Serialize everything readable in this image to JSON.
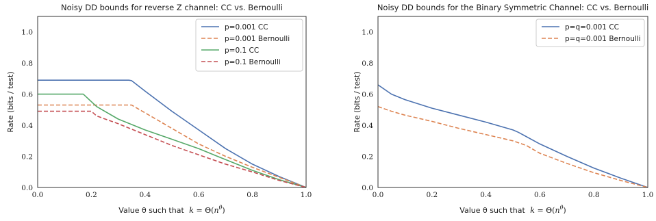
{
  "chart_data": [
    {
      "type": "line",
      "title": "Noisy DD bounds for reverse Z channel: CC vs. Bernoulli",
      "xlabel_text": "Value θ such that",
      "xlabel_math": "k = Θ(nθ)",
      "ylabel": "Rate (bits / test)",
      "xlim": [
        0.0,
        1.0
      ],
      "ylim": [
        0.0,
        1.1
      ],
      "xticks": [
        "0.0",
        "0.2",
        "0.4",
        "0.6",
        "0.8",
        "1.0"
      ],
      "yticks": [
        "0.0",
        "0.2",
        "0.4",
        "0.6",
        "0.8",
        "1.0"
      ],
      "grid": false,
      "legend_position": "top-right",
      "series": [
        {
          "name": "p=0.001 CC",
          "color": "#4c72b0",
          "dash": "solid",
          "points": [
            [
              0.0,
              0.69
            ],
            [
              0.34,
              0.69
            ],
            [
              0.35,
              0.687
            ],
            [
              0.4,
              0.62
            ],
            [
              0.5,
              0.49
            ],
            [
              0.6,
              0.37
            ],
            [
              0.7,
              0.25
            ],
            [
              0.8,
              0.15
            ],
            [
              0.9,
              0.07
            ],
            [
              1.0,
              0.0
            ]
          ]
        },
        {
          "name": "p=0.001 Bernoulli",
          "color": "#dd8452",
          "dash": "dashed",
          "points": [
            [
              0.0,
              0.53
            ],
            [
              0.35,
              0.53
            ],
            [
              0.4,
              0.48
            ],
            [
              0.5,
              0.38
            ],
            [
              0.6,
              0.28
            ],
            [
              0.7,
              0.2
            ],
            [
              0.8,
              0.13
            ],
            [
              0.9,
              0.065
            ],
            [
              1.0,
              0.0
            ]
          ]
        },
        {
          "name": "p=0.1 CC",
          "color": "#55a868",
          "dash": "solid",
          "points": [
            [
              0.0,
              0.6
            ],
            [
              0.17,
              0.6
            ],
            [
              0.22,
              0.52
            ],
            [
              0.3,
              0.44
            ],
            [
              0.4,
              0.37
            ],
            [
              0.5,
              0.31
            ],
            [
              0.6,
              0.25
            ],
            [
              0.67,
              0.2
            ],
            [
              0.8,
              0.11
            ],
            [
              0.9,
              0.05
            ],
            [
              1.0,
              0.0
            ]
          ]
        },
        {
          "name": "p=0.1 Bernoulli",
          "color": "#c44e52",
          "dash": "dashed",
          "points": [
            [
              0.0,
              0.49
            ],
            [
              0.2,
              0.49
            ],
            [
              0.22,
              0.46
            ],
            [
              0.3,
              0.41
            ],
            [
              0.4,
              0.34
            ],
            [
              0.5,
              0.27
            ],
            [
              0.6,
              0.21
            ],
            [
              0.7,
              0.15
            ],
            [
              0.8,
              0.1
            ],
            [
              0.9,
              0.045
            ],
            [
              1.0,
              0.0
            ]
          ]
        }
      ]
    },
    {
      "type": "line",
      "title": "Noisy DD bounds for the Binary Symmetric Channel: CC vs. Bernoulli",
      "xlabel_text": "Value θ such that",
      "xlabel_math": "k = Θ(nθ)",
      "ylabel": "Rate (bits / test)",
      "xlim": [
        0.0,
        1.0
      ],
      "ylim": [
        0.0,
        1.1
      ],
      "xticks": [
        "0.0",
        "0.2",
        "0.4",
        "0.6",
        "0.8",
        "1.0"
      ],
      "yticks": [
        "0.0",
        "0.2",
        "0.4",
        "0.6",
        "0.8",
        "1.0"
      ],
      "grid": false,
      "legend_position": "top-right",
      "series": [
        {
          "name": "p=q=0.001 CC",
          "color": "#4c72b0",
          "dash": "solid",
          "points": [
            [
              0.0,
              0.66
            ],
            [
              0.05,
              0.6
            ],
            [
              0.1,
              0.565
            ],
            [
              0.2,
              0.51
            ],
            [
              0.3,
              0.465
            ],
            [
              0.4,
              0.42
            ],
            [
              0.5,
              0.37
            ],
            [
              0.52,
              0.355
            ],
            [
              0.6,
              0.28
            ],
            [
              0.7,
              0.2
            ],
            [
              0.8,
              0.125
            ],
            [
              0.9,
              0.06
            ],
            [
              1.0,
              0.0
            ]
          ]
        },
        {
          "name": "p=q=0.001 Bernoulli",
          "color": "#dd8452",
          "dash": "dashed",
          "points": [
            [
              0.0,
              0.52
            ],
            [
              0.05,
              0.49
            ],
            [
              0.1,
              0.465
            ],
            [
              0.2,
              0.425
            ],
            [
              0.3,
              0.38
            ],
            [
              0.4,
              0.34
            ],
            [
              0.5,
              0.3
            ],
            [
              0.55,
              0.27
            ],
            [
              0.6,
              0.22
            ],
            [
              0.7,
              0.155
            ],
            [
              0.8,
              0.095
            ],
            [
              0.9,
              0.045
            ],
            [
              1.0,
              0.0
            ]
          ]
        }
      ]
    }
  ]
}
